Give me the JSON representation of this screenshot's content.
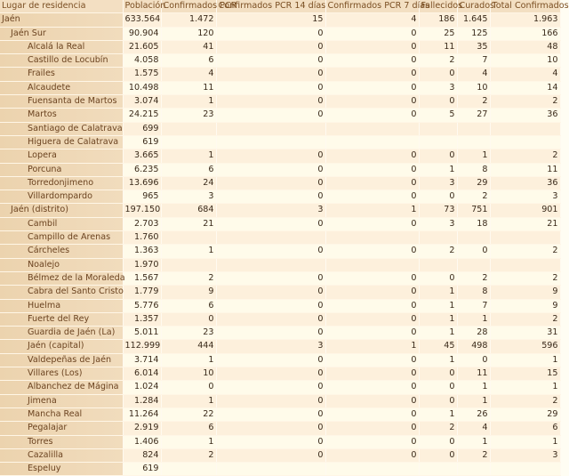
{
  "columns": [
    "Lugar de residencia",
    "Población",
    "Confirmados PCR",
    "Confirmados PCR 14 días",
    "Confirmados PCR 7 días",
    "Fallecidos",
    "Curados",
    "Total Confirmados"
  ],
  "rows": [
    {
      "name": "Jaén",
      "level": 0,
      "values": [
        "633.564",
        "1.472",
        "15",
        "4",
        "186",
        "1.645",
        "1.963"
      ]
    },
    {
      "name": "Jaén Sur",
      "level": 1,
      "values": [
        "90.904",
        "120",
        "0",
        "0",
        "25",
        "125",
        "166"
      ]
    },
    {
      "name": "Alcalá la Real",
      "level": 2,
      "values": [
        "21.605",
        "41",
        "0",
        "0",
        "11",
        "35",
        "48"
      ]
    },
    {
      "name": "Castillo de Locubín",
      "level": 2,
      "values": [
        "4.058",
        "6",
        "0",
        "0",
        "2",
        "7",
        "10"
      ]
    },
    {
      "name": "Frailes",
      "level": 2,
      "values": [
        "1.575",
        "4",
        "0",
        "0",
        "0",
        "4",
        "4"
      ]
    },
    {
      "name": "Alcaudete",
      "level": 2,
      "values": [
        "10.498",
        "11",
        "0",
        "0",
        "3",
        "10",
        "14"
      ]
    },
    {
      "name": "Fuensanta de Martos",
      "level": 2,
      "values": [
        "3.074",
        "1",
        "0",
        "0",
        "0",
        "2",
        "2"
      ]
    },
    {
      "name": "Martos",
      "level": 2,
      "values": [
        "24.215",
        "23",
        "0",
        "0",
        "5",
        "27",
        "36"
      ]
    },
    {
      "name": "Santiago de Calatrava",
      "level": 2,
      "values": [
        "699",
        "",
        "",
        "",
        "",
        "",
        ""
      ]
    },
    {
      "name": "Higuera de Calatrava",
      "level": 2,
      "values": [
        "619",
        "",
        "",
        "",
        "",
        "",
        ""
      ]
    },
    {
      "name": "Lopera",
      "level": 2,
      "values": [
        "3.665",
        "1",
        "0",
        "0",
        "0",
        "1",
        "2"
      ]
    },
    {
      "name": "Porcuna",
      "level": 2,
      "values": [
        "6.235",
        "6",
        "0",
        "0",
        "1",
        "8",
        "11"
      ]
    },
    {
      "name": "Torredonjimeno",
      "level": 2,
      "values": [
        "13.696",
        "24",
        "0",
        "0",
        "3",
        "29",
        "36"
      ]
    },
    {
      "name": "Villardompardo",
      "level": 2,
      "values": [
        "965",
        "3",
        "0",
        "0",
        "0",
        "2",
        "3"
      ]
    },
    {
      "name": "Jaén (distrito)",
      "level": 1,
      "values": [
        "197.150",
        "684",
        "3",
        "1",
        "73",
        "751",
        "901"
      ]
    },
    {
      "name": "Cambil",
      "level": 2,
      "values": [
        "2.703",
        "21",
        "0",
        "0",
        "3",
        "18",
        "21"
      ]
    },
    {
      "name": "Campillo de Arenas",
      "level": 2,
      "values": [
        "1.760",
        "",
        "",
        "",
        "",
        "",
        ""
      ]
    },
    {
      "name": "Cárcheles",
      "level": 2,
      "values": [
        "1.363",
        "1",
        "0",
        "0",
        "2",
        "0",
        "2"
      ]
    },
    {
      "name": "Noalejo",
      "level": 2,
      "values": [
        "1.970",
        "",
        "",
        "",
        "",
        "",
        ""
      ]
    },
    {
      "name": "Bélmez de la Moraleda",
      "level": 2,
      "values": [
        "1.567",
        "2",
        "0",
        "0",
        "0",
        "2",
        "2"
      ]
    },
    {
      "name": "Cabra del Santo Cristo",
      "level": 2,
      "values": [
        "1.779",
        "9",
        "0",
        "0",
        "1",
        "8",
        "9"
      ]
    },
    {
      "name": "Huelma",
      "level": 2,
      "values": [
        "5.776",
        "6",
        "0",
        "0",
        "1",
        "7",
        "9"
      ]
    },
    {
      "name": "Fuerte del Rey",
      "level": 2,
      "values": [
        "1.357",
        "0",
        "0",
        "0",
        "1",
        "1",
        "2"
      ]
    },
    {
      "name": "Guardia de Jaén (La)",
      "level": 2,
      "values": [
        "5.011",
        "23",
        "0",
        "0",
        "1",
        "28",
        "31"
      ]
    },
    {
      "name": "Jaén (capital)",
      "level": 2,
      "values": [
        "112.999",
        "444",
        "3",
        "1",
        "45",
        "498",
        "596"
      ]
    },
    {
      "name": "Valdepeñas de Jaén",
      "level": 2,
      "values": [
        "3.714",
        "1",
        "0",
        "0",
        "1",
        "0",
        "1"
      ]
    },
    {
      "name": "Villares (Los)",
      "level": 2,
      "values": [
        "6.014",
        "10",
        "0",
        "0",
        "0",
        "11",
        "15"
      ]
    },
    {
      "name": "Albanchez de Mágina",
      "level": 2,
      "values": [
        "1.024",
        "0",
        "0",
        "0",
        "0",
        "1",
        "1"
      ]
    },
    {
      "name": "Jimena",
      "level": 2,
      "values": [
        "1.284",
        "1",
        "0",
        "0",
        "0",
        "1",
        "2"
      ]
    },
    {
      "name": "Mancha Real",
      "level": 2,
      "values": [
        "11.264",
        "22",
        "0",
        "0",
        "1",
        "26",
        "29"
      ]
    },
    {
      "name": "Pegalajar",
      "level": 2,
      "values": [
        "2.919",
        "6",
        "0",
        "0",
        "2",
        "4",
        "6"
      ]
    },
    {
      "name": "Torres",
      "level": 2,
      "values": [
        "1.406",
        "1",
        "0",
        "0",
        "0",
        "1",
        "1"
      ]
    },
    {
      "name": "Cazalilla",
      "level": 2,
      "values": [
        "824",
        "2",
        "0",
        "0",
        "0",
        "2",
        "3"
      ]
    },
    {
      "name": "Espeluy",
      "level": 2,
      "values": [
        "619",
        "",
        "",
        "",
        "",
        "",
        ""
      ]
    }
  ]
}
